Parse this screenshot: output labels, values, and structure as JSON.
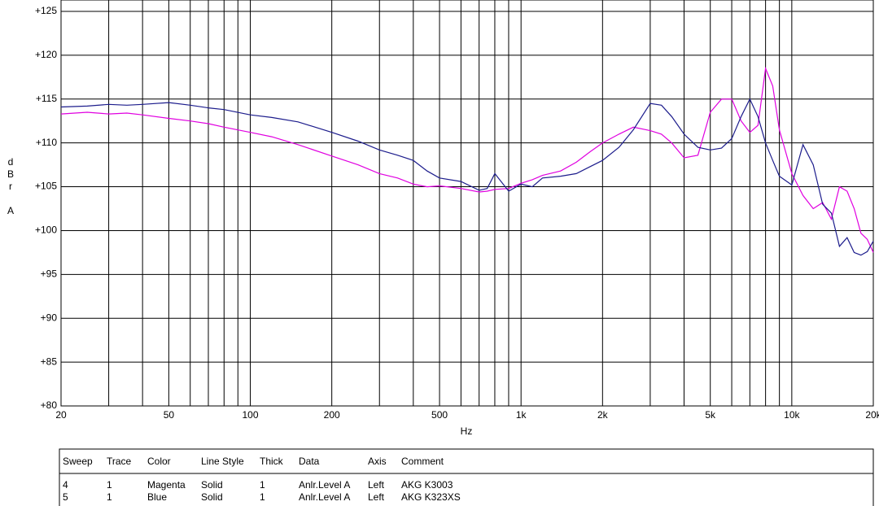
{
  "chart_data": {
    "type": "line",
    "xscale": "log",
    "grid": true,
    "x_label": "Hz",
    "y_label": "dBr A",
    "xlim": [
      20,
      20000
    ],
    "ylim": [
      80,
      126.3
    ],
    "xticks": [
      20,
      {
        "value": 30,
        "label": null
      },
      {
        "value": 40,
        "label": null
      },
      50,
      {
        "value": 60,
        "label": null
      },
      {
        "value": 70,
        "label": null
      },
      {
        "value": 80,
        "label": null
      },
      {
        "value": 90,
        "label": null
      },
      100,
      200,
      {
        "value": 300,
        "label": null
      },
      {
        "value": 400,
        "label": null
      },
      500,
      {
        "value": 600,
        "label": null
      },
      {
        "value": 700,
        "label": null
      },
      {
        "value": 800,
        "label": null
      },
      {
        "value": 900,
        "label": null
      },
      {
        "value": 1000,
        "label": "1k"
      },
      {
        "value": 2000,
        "label": "2k"
      },
      {
        "value": 3000,
        "label": null
      },
      {
        "value": 4000,
        "label": null
      },
      {
        "value": 5000,
        "label": "5k"
      },
      {
        "value": 6000,
        "label": null
      },
      {
        "value": 7000,
        "label": null
      },
      {
        "value": 8000,
        "label": null
      },
      {
        "value": 9000,
        "label": null
      },
      {
        "value": 10000,
        "label": "10k"
      },
      {
        "value": 20000,
        "label": "20k"
      }
    ],
    "yticks": [
      {
        "value": 80,
        "label": "+80"
      },
      {
        "value": 85,
        "label": "+85"
      },
      {
        "value": 90,
        "label": "+90"
      },
      {
        "value": 95,
        "label": "+95"
      },
      {
        "value": 100,
        "label": "+100"
      },
      {
        "value": 105,
        "label": "+105"
      },
      {
        "value": 110,
        "label": "+110"
      },
      {
        "value": 115,
        "label": "+115"
      },
      {
        "value": 120,
        "label": "+120"
      },
      {
        "value": 125,
        "label": "+125"
      }
    ],
    "x": [
      20,
      25,
      30,
      35,
      40,
      50,
      60,
      70,
      80,
      100,
      120,
      150,
      200,
      250,
      300,
      350,
      400,
      450,
      500,
      600,
      700,
      750,
      800,
      900,
      1000,
      1100,
      1200,
      1400,
      1600,
      1800,
      2000,
      2300,
      2600,
      3000,
      3300,
      3600,
      4000,
      4500,
      5000,
      5500,
      6000,
      6500,
      7000,
      7500,
      8000,
      8500,
      9000,
      10000,
      11000,
      12000,
      13000,
      14000,
      15000,
      16000,
      17000,
      18000,
      19000,
      20000
    ],
    "series": [
      {
        "name": "AKG K3003",
        "color": "#e000e0",
        "values": [
          113.3,
          113.5,
          113.3,
          113.4,
          113.2,
          112.8,
          112.5,
          112.2,
          111.8,
          111.2,
          110.7,
          109.8,
          108.5,
          107.5,
          106.5,
          106.0,
          105.3,
          105.0,
          105.1,
          104.8,
          104.4,
          104.5,
          104.7,
          104.8,
          105.4,
          105.8,
          106.3,
          106.8,
          107.8,
          109.0,
          110.0,
          111.0,
          111.8,
          111.4,
          111.0,
          110.0,
          108.3,
          108.6,
          113.5,
          115.0,
          115.0,
          112.5,
          111.2,
          112.0,
          118.5,
          116.5,
          111.5,
          106.5,
          104.0,
          102.5,
          103.2,
          101.3,
          105.0,
          104.5,
          102.5,
          99.7,
          99.0,
          97.5
        ]
      },
      {
        "name": "AKG K323XS",
        "color": "#1c1c8c",
        "values": [
          114.1,
          114.2,
          114.4,
          114.3,
          114.4,
          114.6,
          114.3,
          114.0,
          113.8,
          113.2,
          112.9,
          112.4,
          111.2,
          110.2,
          109.2,
          108.6,
          108.0,
          106.8,
          106.0,
          105.6,
          104.6,
          104.8,
          106.5,
          104.5,
          105.3,
          105.0,
          106.0,
          106.2,
          106.5,
          107.3,
          108.0,
          109.5,
          111.5,
          114.5,
          114.3,
          113.0,
          111.0,
          109.5,
          109.2,
          109.4,
          110.5,
          113.0,
          115.0,
          113.0,
          110.0,
          108.0,
          106.2,
          105.2,
          109.8,
          107.5,
          103.0,
          102.0,
          98.2,
          99.2,
          97.5,
          97.2,
          97.6,
          98.8
        ]
      }
    ],
    "table": {
      "columns": [
        "Sweep",
        "Trace",
        "Color",
        "Line Style",
        "Thick",
        "Data",
        "Axis",
        "Comment"
      ],
      "rows": [
        [
          "4",
          "1",
          "Magenta",
          "Solid",
          "1",
          "Anlr.Level A",
          "Left"
        ],
        [
          "5",
          "1",
          "Blue",
          "Solid",
          "1",
          "Anlr.Level A",
          "Left"
        ]
      ]
    }
  }
}
